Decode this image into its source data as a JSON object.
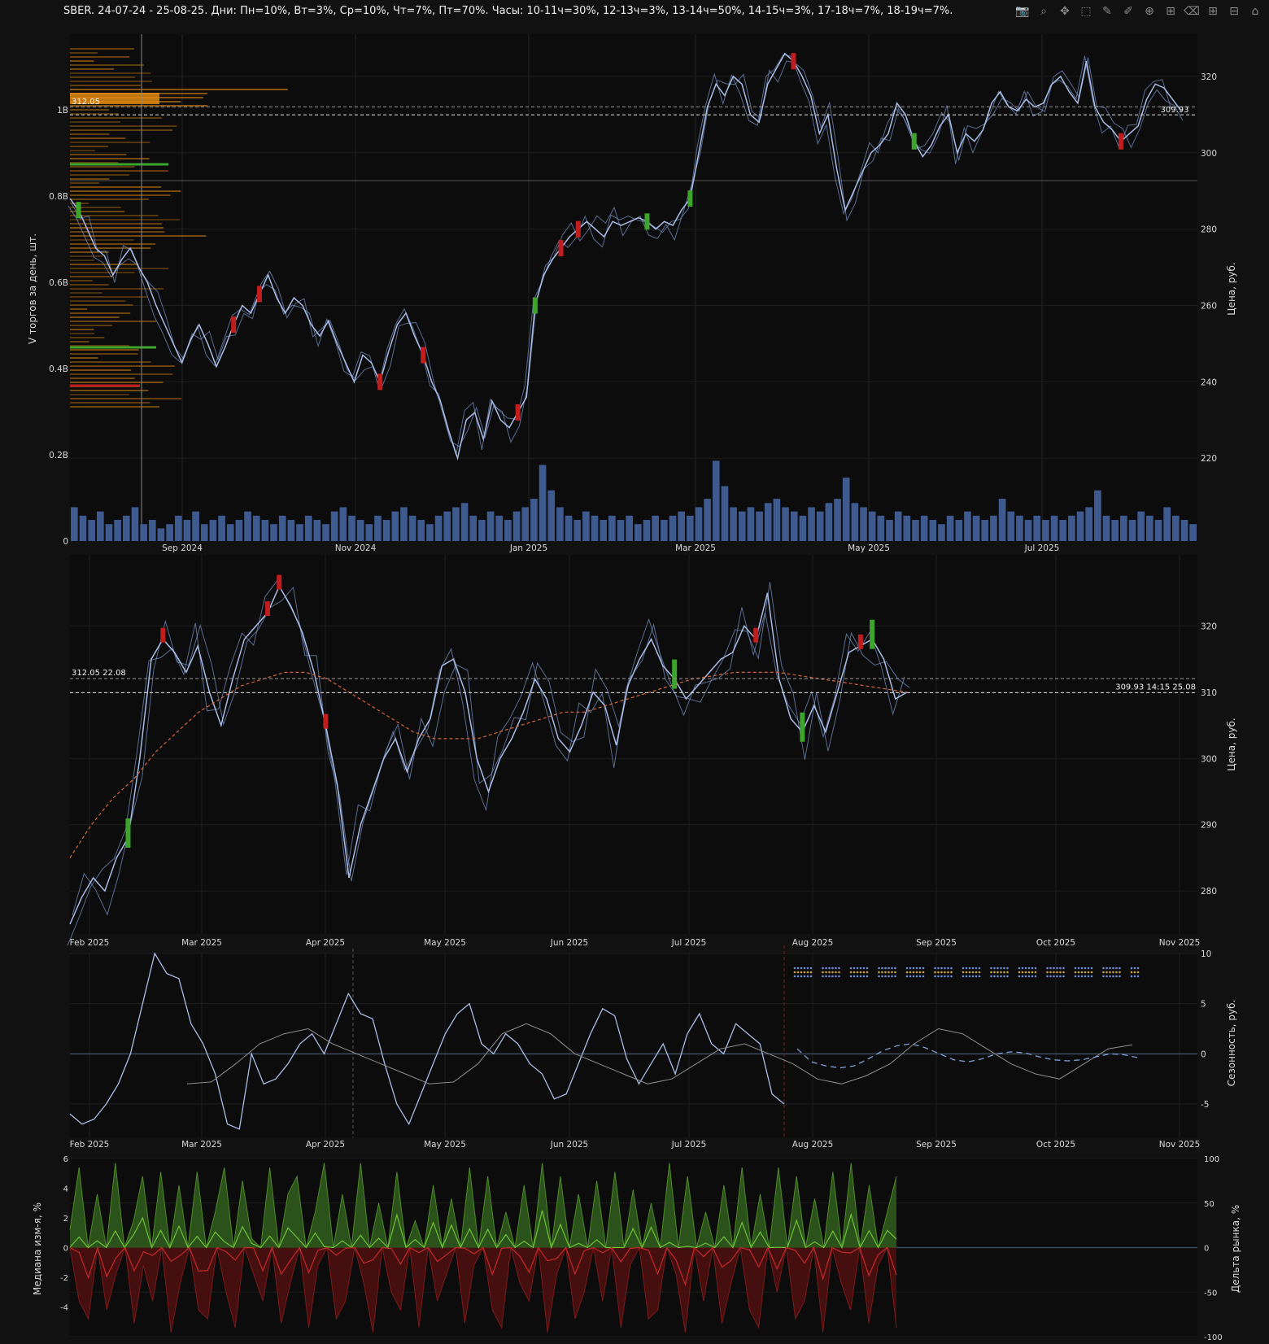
{
  "title": "SBER. 24-07-24 - 25-08-25. Дни: Пн=10%, Вт=3%, Ср=10%, Чт=7%, Пт=70%. Часы: 10-11ч=30%, 12-13ч=3%, 13-14ч=50%, 14-15ч=3%, 17-18ч=7%, 18-19ч=7%.",
  "toolbar": [
    {
      "name": "camera-icon",
      "glyph": "📷"
    },
    {
      "name": "zoom-icon",
      "glyph": "⌕"
    },
    {
      "name": "pan-icon",
      "glyph": "✥"
    },
    {
      "name": "box-select-icon",
      "glyph": "⬚"
    },
    {
      "name": "draw-line-icon",
      "glyph": "✎"
    },
    {
      "name": "draw-path-icon",
      "glyph": "✐"
    },
    {
      "name": "draw-circle-icon",
      "glyph": "⊕"
    },
    {
      "name": "draw-rect-icon",
      "glyph": "⊞"
    },
    {
      "name": "erase-icon",
      "glyph": "⌫"
    },
    {
      "name": "zoom-in-icon",
      "glyph": "⊞"
    },
    {
      "name": "zoom-out-icon",
      "glyph": "⊟"
    },
    {
      "name": "home-icon",
      "glyph": "⌂"
    }
  ],
  "colors": {
    "background": "#111111",
    "plot_bg": "#0c0c0c",
    "price_line": "#7b95c9",
    "price_line_light": "#a9bde6",
    "volume_bar": "#3e5a8e",
    "profile": "#b8720f",
    "profile_hot": "#e08a10",
    "candle_up": "#3da42c",
    "candle_down": "#c01e1e",
    "sma": "#d4663b",
    "green_fill": "#2f5a1c",
    "green_line": "#6fc23a",
    "red_fill": "#4a1010",
    "red_line": "#c3282a"
  },
  "chart_data": [
    {
      "id": "panel1",
      "type": "line",
      "x_ticks": [
        "Sep 2024",
        "Nov 2024",
        "Jan 2025",
        "Mar 2025",
        "May 2025",
        "Jul 2025"
      ],
      "y_left_ticks": [
        "0",
        "0.2B",
        "0.4B",
        "0.6B",
        "0.8B",
        "1B"
      ],
      "y_right_ticks": [
        "220",
        "240",
        "260",
        "280",
        "300",
        "320"
      ],
      "y_left_label": "V торгов за день, шт.",
      "y_right_label": "Цена, руб.",
      "ylim": [
        203,
        330
      ],
      "hlines": [
        {
          "label": "312.05",
          "value": 312.05
        },
        {
          "label": "309.93",
          "value": 309.93
        }
      ],
      "price_points": [
        288,
        285,
        280,
        275,
        273,
        268,
        272,
        275,
        270,
        266,
        260,
        255,
        250,
        245,
        251,
        255,
        250,
        244,
        249,
        255,
        260,
        258,
        263,
        268,
        262,
        258,
        262,
        260,
        255,
        252,
        256,
        250,
        245,
        240,
        247,
        245,
        240,
        248,
        255,
        258,
        252,
        247,
        240,
        235,
        227,
        220,
        230,
        232,
        225,
        235,
        230,
        228,
        232,
        236,
        260,
        268,
        272,
        275,
        278,
        280,
        282,
        280,
        278,
        282,
        281,
        282,
        283,
        282,
        280,
        282,
        281,
        285,
        288,
        300,
        312,
        318,
        315,
        320,
        318,
        310,
        308,
        318,
        322,
        326,
        324,
        320,
        315,
        305,
        310,
        296,
        285,
        290,
        295,
        300,
        302,
        305,
        313,
        310,
        303,
        299,
        302,
        307,
        310,
        300,
        305,
        303,
        306,
        313,
        316,
        312,
        311,
        314,
        312,
        313,
        318,
        320,
        316,
        313,
        324,
        312,
        308,
        306,
        303,
        305,
        307,
        314,
        318,
        317,
        314,
        311
      ],
      "volume": [
        0.08,
        0.06,
        0.05,
        0.07,
        0.04,
        0.05,
        0.06,
        0.08,
        0.04,
        0.05,
        0.03,
        0.04,
        0.06,
        0.05,
        0.07,
        0.04,
        0.05,
        0.06,
        0.04,
        0.05,
        0.07,
        0.06,
        0.05,
        0.04,
        0.06,
        0.05,
        0.04,
        0.06,
        0.05,
        0.04,
        0.07,
        0.08,
        0.06,
        0.05,
        0.04,
        0.06,
        0.05,
        0.07,
        0.08,
        0.06,
        0.05,
        0.04,
        0.06,
        0.07,
        0.08,
        0.09,
        0.06,
        0.05,
        0.07,
        0.06,
        0.05,
        0.07,
        0.08,
        0.1,
        0.18,
        0.12,
        0.08,
        0.06,
        0.05,
        0.07,
        0.06,
        0.05,
        0.06,
        0.05,
        0.06,
        0.04,
        0.05,
        0.06,
        0.05,
        0.06,
        0.07,
        0.06,
        0.08,
        0.1,
        0.19,
        0.13,
        0.08,
        0.07,
        0.08,
        0.07,
        0.09,
        0.1,
        0.08,
        0.07,
        0.06,
        0.08,
        0.07,
        0.09,
        0.1,
        0.15,
        0.09,
        0.08,
        0.07,
        0.06,
        0.05,
        0.07,
        0.06,
        0.05,
        0.06,
        0.05,
        0.04,
        0.06,
        0.05,
        0.07,
        0.06,
        0.05,
        0.06,
        0.1,
        0.07,
        0.06,
        0.05,
        0.06,
        0.05,
        0.06,
        0.05,
        0.06,
        0.07,
        0.08,
        0.12,
        0.06,
        0.05,
        0.06,
        0.05,
        0.07,
        0.06,
        0.05,
        0.08,
        0.06,
        0.05,
        0.04
      ]
    },
    {
      "id": "panel2",
      "type": "line",
      "x_ticks": [
        "Feb 2025",
        "Mar 2025",
        "Apr 2025",
        "May 2025",
        "Jun 2025",
        "Jul 2025",
        "Aug 2025",
        "Sep 2025",
        "Oct 2025",
        "Nov 2025"
      ],
      "y_right_ticks": [
        "280",
        "290",
        "300",
        "310",
        "320"
      ],
      "y_right_label": "Цена, руб.",
      "ylim": [
        274,
        330
      ],
      "hlines": [
        {
          "label": "312.05 22.08",
          "value": 312.05
        },
        {
          "label": "309.93 14:15 25.08",
          "value": 309.93
        }
      ],
      "price_points": [
        275,
        279,
        282,
        280,
        285,
        288,
        300,
        315,
        318,
        316,
        313,
        317,
        310,
        305,
        312,
        318,
        320,
        322,
        326,
        323,
        319,
        313,
        305,
        296,
        282,
        290,
        295,
        300,
        303,
        298,
        303,
        306,
        314,
        315,
        310,
        300,
        295,
        300,
        303,
        307,
        312,
        309,
        303,
        301,
        305,
        310,
        308,
        302,
        311,
        315,
        318,
        314,
        312,
        309,
        311,
        313,
        315,
        316,
        320,
        318,
        325,
        312,
        306,
        304,
        308,
        304,
        310,
        316,
        317,
        318,
        315,
        309,
        310
      ],
      "sma_points": [
        285,
        290,
        294,
        297,
        301,
        304,
        307,
        309,
        311,
        312,
        313,
        313,
        312,
        310,
        308,
        306,
        304,
        303,
        303,
        303,
        304,
        305,
        306,
        307,
        307,
        308,
        309,
        310,
        311,
        312,
        312.5,
        313,
        313,
        313,
        312.5,
        312,
        311.5,
        311,
        310.5,
        310
      ]
    },
    {
      "id": "panel3",
      "type": "line",
      "x_ticks": [
        "Feb 2025",
        "Mar 2025",
        "Apr 2025",
        "May 2025",
        "Jun 2025",
        "Jul 2025",
        "Aug 2025",
        "Sep 2025",
        "Oct 2025",
        "Nov 2025"
      ],
      "y_right_ticks": [
        "-5",
        "0",
        "5",
        "10"
      ],
      "y_right_label": "Сезонность, руб.",
      "ylim": [
        -8,
        10
      ],
      "series_a": [
        -6,
        -7,
        -6.5,
        -5,
        -3,
        0,
        5,
        10,
        8,
        7.5,
        3,
        1,
        -2,
        -7,
        -7.5,
        0,
        -3,
        -2.5,
        -1,
        1,
        2,
        0,
        3,
        6,
        4,
        3.5,
        -1,
        -5,
        -7,
        -4,
        -1,
        2,
        4,
        5,
        1,
        0,
        2,
        1,
        -1,
        -2,
        -4.5,
        -4,
        -1,
        2,
        4.5,
        3.8,
        -0.5,
        -3,
        -1,
        1,
        -2,
        2,
        4,
        1,
        0,
        3,
        2,
        1,
        -4,
        -5
      ],
      "series_b": [
        -3,
        -2.8,
        -1,
        1,
        2,
        2.5,
        1,
        0,
        -1,
        -2,
        -3,
        -2.8,
        -1,
        2,
        3,
        2,
        0,
        -1,
        -2,
        -3,
        -2.5,
        -1,
        0.5,
        1,
        0,
        -1,
        -2.5,
        -3,
        -2.2,
        -1,
        1,
        2.5,
        2,
        0.5,
        -1,
        -2,
        -2.5,
        -1,
        0.5,
        0.9
      ],
      "forecast": [
        0.5,
        -0.8,
        -1.2,
        -1.4,
        -1.2,
        -0.5,
        0.3,
        0.8,
        1,
        0.6,
        0,
        -0.6,
        -0.8,
        -0.5,
        0,
        0.2,
        0.1,
        -0.3,
        -0.6,
        -0.7,
        -0.6,
        -0.3,
        0,
        -0.1,
        -0.4
      ]
    },
    {
      "id": "panel4",
      "type": "area",
      "y_left_ticks": [
        "-4",
        "-2",
        "0",
        "2",
        "4",
        "6"
      ],
      "y_right_ticks": [
        "-100",
        "-50",
        "0",
        "50",
        "100"
      ],
      "y_left_label": "Медиана изм-я, %",
      "y_right_label": "Дельта рынка, %",
      "ylim": [
        -100,
        100
      ],
      "pos": [
        20,
        90,
        0,
        60,
        0,
        95,
        0,
        30,
        80,
        0,
        85,
        0,
        70,
        0,
        85,
        0,
        40,
        90,
        0,
        75,
        10,
        0,
        90,
        0,
        60,
        80,
        0,
        40,
        95,
        0,
        60,
        0,
        95,
        0,
        50,
        0,
        85,
        0,
        30,
        0,
        70,
        0,
        55,
        0,
        90,
        0,
        80,
        0,
        40,
        0,
        70,
        0,
        95,
        0,
        80,
        0,
        60,
        0,
        75,
        0,
        85,
        0,
        65,
        0,
        50,
        0,
        95,
        0,
        80,
        0,
        40,
        0,
        70,
        0,
        90,
        0,
        60,
        0,
        90,
        0,
        80,
        0,
        55,
        0,
        85,
        0,
        95,
        0,
        70,
        0,
        40,
        80
      ],
      "neg": [
        0,
        -60,
        -80,
        0,
        -70,
        -30,
        0,
        -85,
        -20,
        -60,
        0,
        -95,
        -40,
        0,
        -70,
        -80,
        0,
        -50,
        -90,
        0,
        -30,
        -60,
        0,
        -85,
        -40,
        0,
        -90,
        -20,
        0,
        -80,
        -60,
        0,
        -40,
        -95,
        0,
        -50,
        -70,
        0,
        -90,
        0,
        -60,
        -30,
        0,
        -85,
        -20,
        0,
        -70,
        -90,
        0,
        -40,
        -60,
        0,
        -95,
        -30,
        0,
        -80,
        -50,
        0,
        -60,
        0,
        -90,
        -20,
        0,
        -80,
        -70,
        0,
        -30,
        -95,
        0,
        -60,
        0,
        -85,
        -40,
        0,
        -70,
        -90,
        0,
        -50,
        0,
        -80,
        -60,
        0,
        -95,
        0,
        -40,
        -70,
        0,
        -85,
        -20,
        0,
        -90
      ]
    }
  ]
}
